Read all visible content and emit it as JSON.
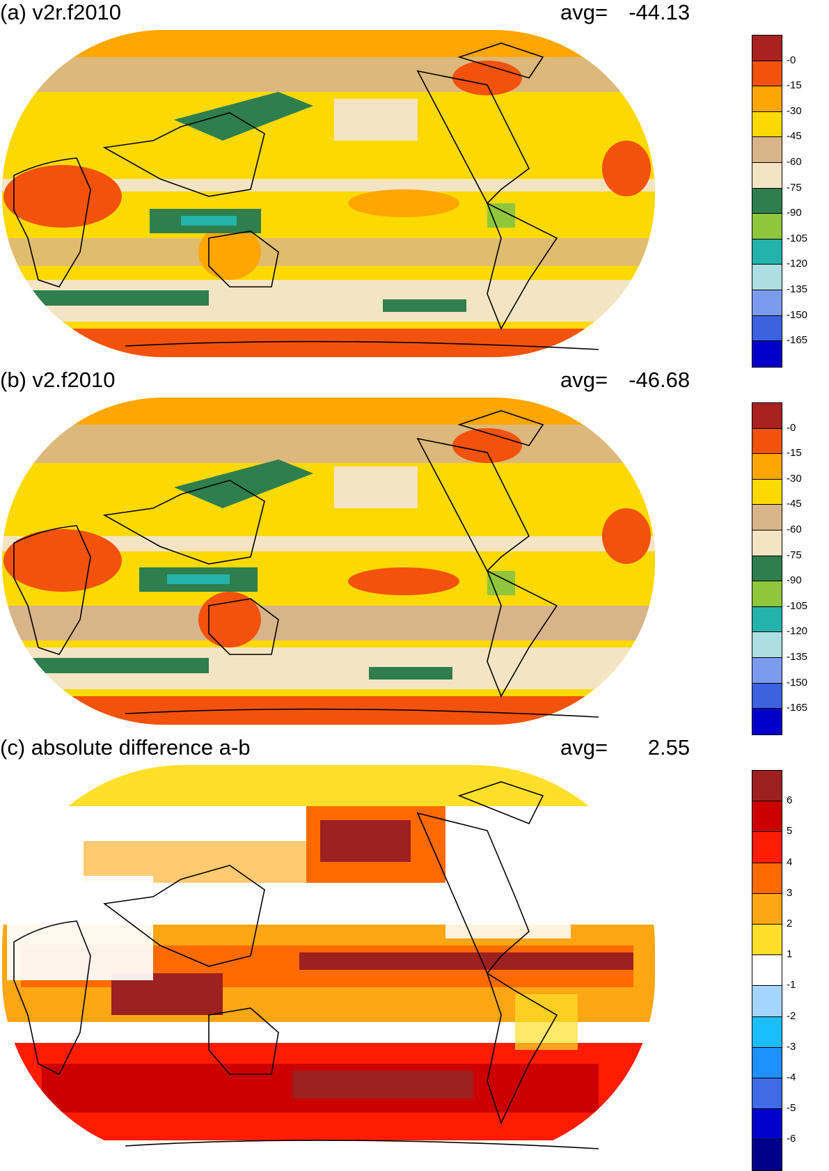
{
  "panels": [
    {
      "id": "a",
      "title": "(a) v2r.f2010",
      "avg_label": "avg=",
      "avg_value": "-44.13",
      "colorbar": {
        "colors": [
          "#a8221f",
          "#f2520b",
          "#ffa600",
          "#fcd900",
          "#d8b48a",
          "#f3e4c3",
          "#2f7e4e",
          "#8fc63c",
          "#24b3ab",
          "#addfe2",
          "#7b9bee",
          "#3b63e0",
          "#0000c8"
        ],
        "labels": [
          "-0",
          "-15",
          "-30",
          "-45",
          "-60",
          "-75",
          "-90",
          "-105",
          "-120",
          "-135",
          "-150",
          "-165"
        ]
      }
    },
    {
      "id": "b",
      "title": "(b) v2.f2010",
      "avg_label": "avg=",
      "avg_value": "-46.68",
      "colorbar": {
        "colors": [
          "#a8221f",
          "#f2520b",
          "#ffa600",
          "#fcd900",
          "#d8b48a",
          "#f3e4c3",
          "#2f7e4e",
          "#8fc63c",
          "#24b3ab",
          "#addfe2",
          "#7b9bee",
          "#3b63e0",
          "#0000c8"
        ],
        "labels": [
          "-0",
          "-15",
          "-30",
          "-45",
          "-60",
          "-75",
          "-90",
          "-105",
          "-120",
          "-135",
          "-150",
          "-165"
        ]
      }
    },
    {
      "id": "c",
      "title": "(c) absolute difference a-b",
      "avg_label": "avg=",
      "avg_value": "2.55",
      "colorbar": {
        "colors": [
          "#9c2120",
          "#cc0000",
          "#ff1c00",
          "#ff6a00",
          "#ffa614",
          "#ffdf29",
          "#ffffff",
          "#a5d5ff",
          "#1bbfff",
          "#1e90ff",
          "#3f6be6",
          "#0000cc",
          "#00008b"
        ],
        "labels": [
          "6",
          "5",
          "4",
          "3",
          "2",
          "1",
          "-1",
          "-2",
          "-3",
          "-4",
          "-5",
          "-6"
        ]
      }
    }
  ]
}
